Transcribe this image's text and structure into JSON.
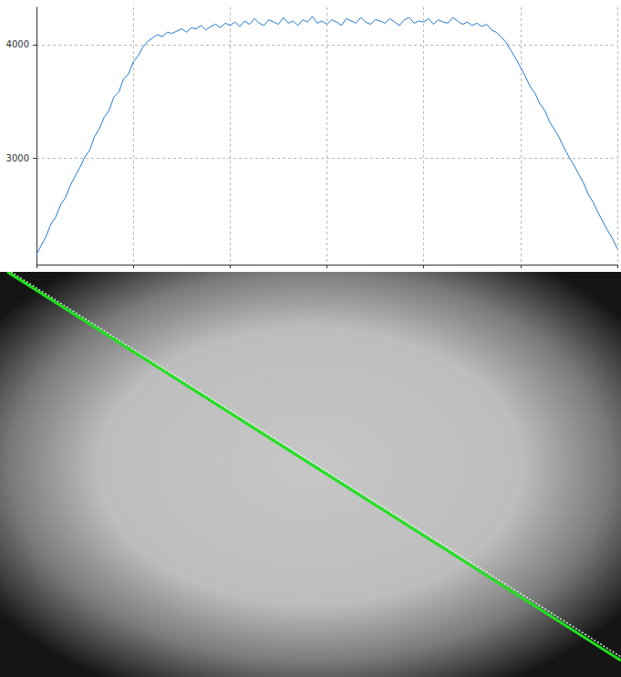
{
  "chart_data": {
    "type": "line",
    "color": "#1f78d1",
    "grid": true,
    "tick_labels": "y",
    "xlim": [
      0,
      600
    ],
    "xticks": [
      0,
      100,
      200,
      300,
      400,
      500,
      600
    ],
    "ylim": [
      2060,
      4330
    ],
    "yticks": [
      3000,
      4000
    ],
    "x": [
      0,
      5,
      10,
      15,
      20,
      25,
      30,
      35,
      40,
      45,
      50,
      55,
      60,
      65,
      70,
      75,
      80,
      85,
      90,
      95,
      100,
      105,
      110,
      115,
      120,
      125,
      130,
      135,
      140,
      145,
      150,
      155,
      160,
      165,
      170,
      175,
      180,
      185,
      190,
      195,
      200,
      205,
      210,
      215,
      220,
      225,
      230,
      235,
      240,
      245,
      250,
      255,
      260,
      265,
      270,
      275,
      280,
      285,
      290,
      295,
      300,
      305,
      310,
      315,
      320,
      325,
      330,
      335,
      340,
      345,
      350,
      355,
      360,
      365,
      370,
      375,
      380,
      385,
      390,
      395,
      400,
      405,
      410,
      415,
      420,
      425,
      430,
      435,
      440,
      445,
      450,
      455,
      460,
      465,
      470,
      475,
      480,
      485,
      490,
      495,
      500,
      505,
      510,
      515,
      520,
      525,
      530,
      535,
      540,
      545,
      550,
      555,
      560,
      565,
      570,
      575,
      580,
      585,
      590,
      595,
      600
    ],
    "values": [
      2150,
      2230,
      2310,
      2420,
      2480,
      2590,
      2650,
      2760,
      2840,
      2920,
      3010,
      3070,
      3190,
      3260,
      3360,
      3420,
      3540,
      3580,
      3700,
      3740,
      3850,
      3900,
      3980,
      4030,
      4060,
      4090,
      4070,
      4110,
      4100,
      4120,
      4140,
      4110,
      4150,
      4140,
      4170,
      4130,
      4160,
      4180,
      4150,
      4190,
      4170,
      4200,
      4160,
      4210,
      4180,
      4230,
      4190,
      4170,
      4220,
      4200,
      4180,
      4240,
      4190,
      4210,
      4170,
      4220,
      4200,
      4250,
      4190,
      4210,
      4180,
      4220,
      4200,
      4170,
      4230,
      4210,
      4190,
      4240,
      4200,
      4180,
      4220,
      4210,
      4190,
      4230,
      4200,
      4170,
      4220,
      4240,
      4190,
      4210,
      4200,
      4230,
      4180,
      4220,
      4200,
      4190,
      4240,
      4210,
      4180,
      4200,
      4170,
      4190,
      4160,
      4180,
      4130,
      4110,
      4070,
      4020,
      3950,
      3880,
      3800,
      3720,
      3630,
      3570,
      3480,
      3420,
      3320,
      3250,
      3180,
      3090,
      3010,
      2940,
      2860,
      2780,
      2680,
      2610,
      2520,
      2440,
      2360,
      2290,
      2200
    ]
  }
}
